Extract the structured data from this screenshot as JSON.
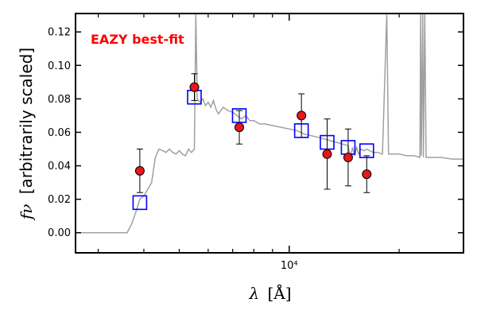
{
  "chart_data": {
    "type": "scatter",
    "title": "",
    "annotation": "EAZY best-fit",
    "annotation_color": "#ff0000",
    "xlabel_symbol": "λ",
    "xlabel_unit": "[Å]",
    "ylabel_symbol": "fν",
    "ylabel_text": "[arbitrarily scaled]",
    "x_scale": "log",
    "xlim": [
      2600,
      30000
    ],
    "ylim": [
      -0.012,
      0.131
    ],
    "x_tick_labels": [
      "10⁴"
    ],
    "x_major_ticks": [
      10000
    ],
    "x_minor_ticks": [
      3000,
      4000,
      5000,
      6000,
      7000,
      8000,
      9000,
      20000
    ],
    "y_ticks": [
      0.0,
      0.02,
      0.04,
      0.06,
      0.08,
      0.1,
      0.12
    ],
    "y_tick_labels": [
      "0.00",
      "0.02",
      "0.04",
      "0.06",
      "0.08",
      "0.10",
      "0.12"
    ],
    "grid": false,
    "colors": {
      "sed": "#a0a0a0",
      "model_box": "#0000ff",
      "observed_fill": "#e8161b",
      "observed_edge": "#000000",
      "errorbar": "#000000"
    },
    "series": [
      {
        "kind": "line",
        "points": [
          [
            2600,
            0.0
          ],
          [
            3600,
            0.0
          ],
          [
            3700,
            0.005
          ],
          [
            3800,
            0.012
          ],
          [
            3900,
            0.02
          ],
          [
            4000,
            0.022
          ],
          [
            4050,
            0.024
          ],
          [
            4100,
            0.026
          ],
          [
            4200,
            0.03
          ],
          [
            4300,
            0.045
          ],
          [
            4400,
            0.05
          ],
          [
            4500,
            0.049
          ],
          [
            4600,
            0.048
          ],
          [
            4700,
            0.05
          ],
          [
            4800,
            0.048
          ],
          [
            4900,
            0.047
          ],
          [
            5000,
            0.049
          ],
          [
            5100,
            0.047
          ],
          [
            5200,
            0.046
          ],
          [
            5300,
            0.05
          ],
          [
            5400,
            0.048
          ],
          [
            5500,
            0.05
          ],
          [
            5550,
            0.131
          ],
          [
            5600,
            0.08
          ],
          [
            5700,
            0.078
          ],
          [
            5800,
            0.08
          ],
          [
            5900,
            0.076
          ],
          [
            6000,
            0.078
          ],
          [
            6100,
            0.075
          ],
          [
            6200,
            0.079
          ],
          [
            6300,
            0.074
          ],
          [
            6400,
            0.071
          ],
          [
            6600,
            0.075
          ],
          [
            6800,
            0.073
          ],
          [
            7000,
            0.072
          ],
          [
            7200,
            0.07
          ],
          [
            7400,
            0.068
          ],
          [
            7600,
            0.07
          ],
          [
            7800,
            0.067
          ],
          [
            8000,
            0.067
          ],
          [
            8300,
            0.065
          ],
          [
            8600,
            0.065
          ],
          [
            9000,
            0.064
          ],
          [
            9500,
            0.063
          ],
          [
            10000,
            0.062
          ],
          [
            10500,
            0.061
          ],
          [
            11000,
            0.059
          ],
          [
            11500,
            0.058
          ],
          [
            12000,
            0.057
          ],
          [
            12500,
            0.056
          ],
          [
            13000,
            0.055
          ],
          [
            13500,
            0.054
          ],
          [
            14000,
            0.053
          ],
          [
            14500,
            0.052
          ],
          [
            14700,
            0.045
          ],
          [
            14900,
            0.051
          ],
          [
            15100,
            0.046
          ],
          [
            15300,
            0.051
          ],
          [
            15500,
            0.047
          ],
          [
            15700,
            0.05
          ],
          [
            16000,
            0.049
          ],
          [
            16300,
            0.05
          ],
          [
            16600,
            0.049
          ],
          [
            17000,
            0.048
          ],
          [
            17500,
            0.048
          ],
          [
            18000,
            0.047
          ],
          [
            18500,
            0.131
          ],
          [
            18700,
            0.047
          ],
          [
            19000,
            0.047
          ],
          [
            20000,
            0.047
          ],
          [
            21000,
            0.046
          ],
          [
            22000,
            0.046
          ],
          [
            22800,
            0.045
          ],
          [
            22900,
            0.131
          ],
          [
            23000,
            0.046
          ],
          [
            23200,
            0.131
          ],
          [
            23300,
            0.045
          ],
          [
            23500,
            0.131
          ],
          [
            23700,
            0.045
          ],
          [
            24000,
            0.045
          ],
          [
            26000,
            0.045
          ],
          [
            28000,
            0.044
          ],
          [
            30000,
            0.044
          ]
        ]
      },
      {
        "kind": "model_photometry",
        "points": [
          [
            3900,
            0.018
          ],
          [
            5500,
            0.081
          ],
          [
            7300,
            0.07
          ],
          [
            10800,
            0.061
          ],
          [
            12700,
            0.054
          ],
          [
            14500,
            0.051
          ],
          [
            16300,
            0.049
          ]
        ]
      },
      {
        "kind": "observed_photometry",
        "points": [
          [
            3900,
            0.037,
            0.013
          ],
          [
            5500,
            0.087,
            0.008
          ],
          [
            7300,
            0.063,
            0.01
          ],
          [
            10800,
            0.07,
            0.013
          ],
          [
            12700,
            0.047,
            0.021
          ],
          [
            14500,
            0.045,
            0.017
          ],
          [
            16300,
            0.035,
            0.011
          ]
        ]
      }
    ]
  }
}
